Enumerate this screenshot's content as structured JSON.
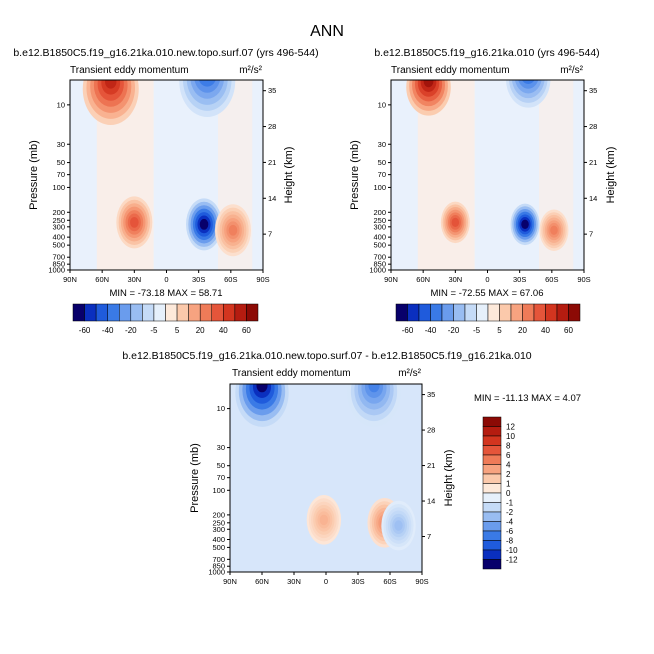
{
  "page_title": "ANN",
  "chart_data": [
    {
      "type": "heatmap",
      "title": "b.e12.B1850C5.f19_g16.21ka.010.new.topo.surf.07 (yrs 496-544)",
      "subtitle": "Transient eddy momentum",
      "units": "m²/s²",
      "xlabel": "",
      "ylabel": "Pressure (mb)",
      "y2label": "Height (km)",
      "x_ticks": [
        "90N",
        "60N",
        "30N",
        "0",
        "30S",
        "60S",
        "90S"
      ],
      "y_ticks": [
        "10",
        "30",
        "50",
        "70",
        "100",
        "200",
        "250",
        "300",
        "400",
        "500",
        "700",
        "850",
        "1000"
      ],
      "y2_ticks": [
        "35",
        "28",
        "21",
        "14",
        "7"
      ],
      "min": -73.18,
      "max": 58.71,
      "stats_label": "MIN = -73.18   MAX =  58.71",
      "features": [
        {
          "lat": 52,
          "p": 5,
          "value": 58.71
        },
        {
          "lat": 30,
          "p": 265,
          "value": 42
        },
        {
          "lat": -35,
          "p": 280,
          "value": -73.18
        },
        {
          "lat": -62,
          "p": 330,
          "value": 30
        },
        {
          "lat": -38,
          "p": 4,
          "value": -48
        }
      ]
    },
    {
      "type": "heatmap",
      "title": "b.e12.B1850C5.f19_g16.21ka.010 (yrs 496-544)",
      "subtitle": "Transient eddy momentum",
      "units": "m²/s²",
      "xlabel": "",
      "ylabel": "Pressure (mb)",
      "y2label": "Height (km)",
      "x_ticks": [
        "90N",
        "60N",
        "30N",
        "0",
        "30S",
        "60S",
        "90S"
      ],
      "y_ticks": [
        "10",
        "30",
        "50",
        "70",
        "100",
        "200",
        "250",
        "300",
        "400",
        "500",
        "700",
        "850",
        "1000"
      ],
      "y2_ticks": [
        "35",
        "28",
        "21",
        "14",
        "7"
      ],
      "min": -72.55,
      "max": 67.06,
      "stats_label": "MIN = -72.55   MAX =  67.06",
      "features": [
        {
          "lat": 55,
          "p": 5,
          "value": 67.06
        },
        {
          "lat": 30,
          "p": 265,
          "value": 42
        },
        {
          "lat": -35,
          "p": 280,
          "value": -72.55
        },
        {
          "lat": -62,
          "p": 330,
          "value": 30
        },
        {
          "lat": -38,
          "p": 4,
          "value": -48
        }
      ]
    },
    {
      "type": "heatmap",
      "title": "b.e12.B1850C5.f19_g16.21ka.010.new.topo.surf.07 - b.e12.B1850C5.f19_g16.21ka.010",
      "subtitle": "Transient eddy momentum",
      "units": "m²/s²",
      "xlabel": "",
      "ylabel": "Pressure (mb)",
      "y2label": "Height (km)",
      "x_ticks": [
        "90N",
        "60N",
        "30N",
        "0",
        "30S",
        "60S",
        "90S"
      ],
      "y_ticks": [
        "10",
        "30",
        "50",
        "70",
        "100",
        "200",
        "250",
        "300",
        "400",
        "500",
        "700",
        "850",
        "1000"
      ],
      "y2_ticks": [
        "35",
        "28",
        "21",
        "14",
        "7"
      ],
      "min": -11.13,
      "max": 4.07,
      "stats_label": "MIN = -11.13   MAX =  4.07",
      "features": [
        {
          "lat": 60,
          "p": 5,
          "value": -11.13
        },
        {
          "lat": -45,
          "p": 5,
          "value": -6
        },
        {
          "lat": 2,
          "p": 230,
          "value": 2.5
        },
        {
          "lat": -55,
          "p": 250,
          "value": 4.07
        },
        {
          "lat": -68,
          "p": 270,
          "value": -3
        }
      ]
    }
  ],
  "colorbar_horizontal": {
    "labels": [
      "-60",
      "-40",
      "-20",
      "-5",
      "5",
      "20",
      "40",
      "60"
    ],
    "colors": [
      "#08006b",
      "#0a2fbf",
      "#1f5bdc",
      "#3a7ae6",
      "#6a9ced",
      "#99bdf2",
      "#c5dbf7",
      "#e6f0fb",
      "#fde9da",
      "#fbc9ab",
      "#f7a380",
      "#ef7b58",
      "#e5553a",
      "#d3351f",
      "#b51c10",
      "#8c0a05"
    ]
  },
  "colorbar_vertical": {
    "labels": [
      "12",
      "10",
      "8",
      "6",
      "4",
      "2",
      "1",
      "0",
      "-1",
      "-2",
      "-4",
      "-6",
      "-8",
      "-10",
      "-12"
    ],
    "colors": [
      "#8c0a05",
      "#b51c10",
      "#d3351f",
      "#e5553a",
      "#ef7b58",
      "#f7a380",
      "#fbc9ab",
      "#fde9da",
      "#e6f0fb",
      "#c5dbf7",
      "#99bdf2",
      "#6a9ced",
      "#3a7ae6",
      "#1f5bdc",
      "#0a2fbf",
      "#08006b"
    ]
  }
}
